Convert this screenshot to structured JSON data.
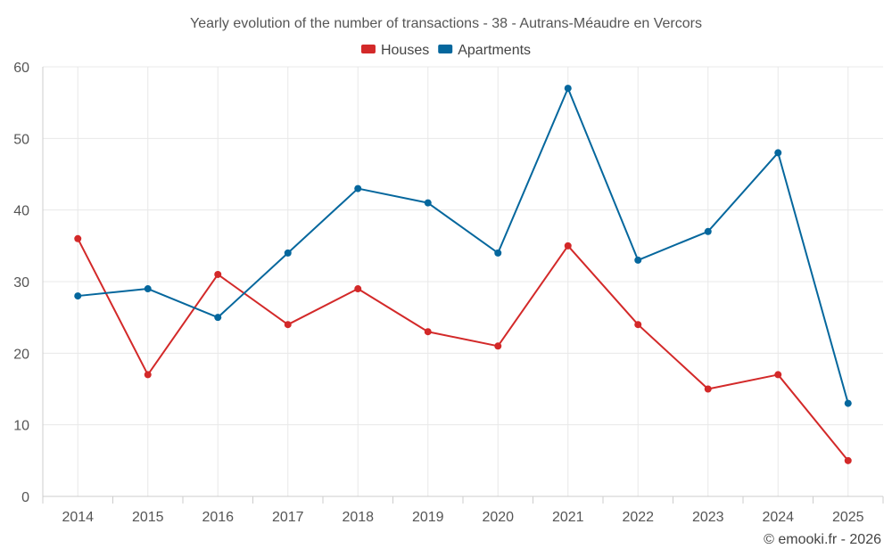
{
  "chart_data": {
    "type": "line",
    "title": "Yearly evolution of the number of transactions - 38 - Autrans-Méaudre en Vercors",
    "categories": [
      "2014",
      "2015",
      "2016",
      "2017",
      "2018",
      "2019",
      "2020",
      "2021",
      "2022",
      "2023",
      "2024",
      "2025"
    ],
    "series": [
      {
        "name": "Houses",
        "color": "#d32929",
        "values": [
          36,
          17,
          31,
          24,
          29,
          23,
          21,
          35,
          24,
          15,
          17,
          5
        ]
      },
      {
        "name": "Apartments",
        "color": "#05679d",
        "values": [
          28,
          29,
          25,
          34,
          43,
          41,
          34,
          57,
          33,
          37,
          48,
          13
        ]
      }
    ],
    "ylim": [
      0,
      60
    ],
    "yticks": [
      0,
      10,
      20,
      30,
      40,
      50,
      60
    ],
    "xlabel": "",
    "ylabel": "",
    "grid": true,
    "legend_position": "top-center"
  },
  "credit": "© emooki.fr - 2026"
}
